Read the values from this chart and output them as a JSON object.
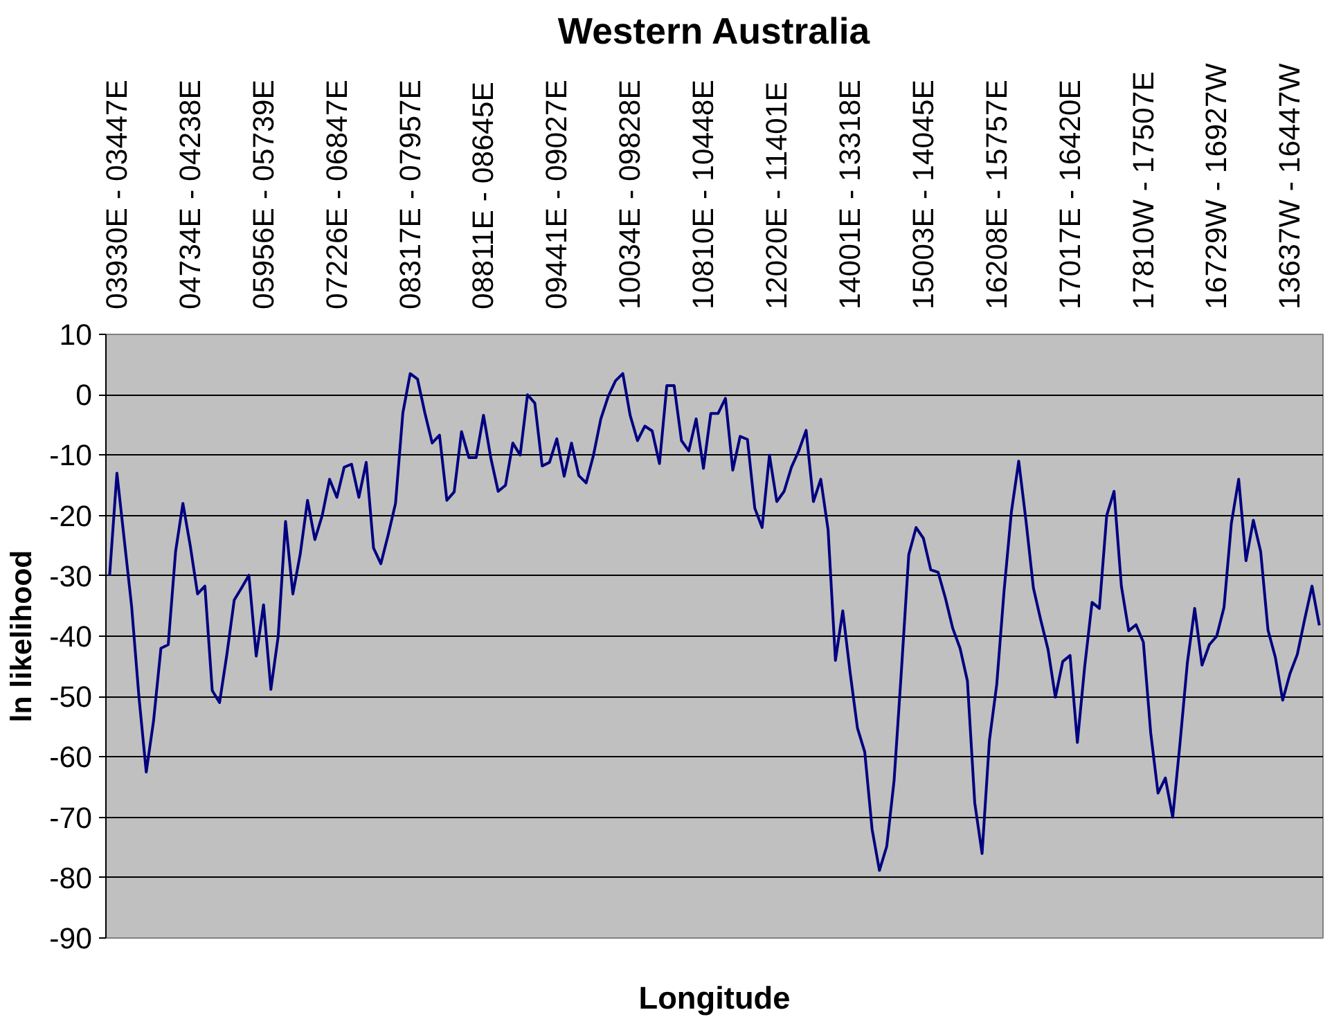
{
  "chart_data": {
    "type": "line",
    "title": "Western Australia",
    "xlabel": "Longitude",
    "ylabel": "ln likelihood",
    "categories": [
      null,
      "03930E - 03447E",
      null,
      null,
      null,
      null,
      null,
      null,
      null,
      null,
      null,
      "04734E - 04238E",
      null,
      null,
      null,
      null,
      null,
      null,
      null,
      null,
      null,
      "05956E - 05739E",
      null,
      null,
      null,
      null,
      null,
      null,
      null,
      null,
      null,
      "07226E - 06847E",
      null,
      null,
      null,
      null,
      null,
      null,
      null,
      null,
      null,
      "08317E - 07957E",
      null,
      null,
      null,
      null,
      null,
      null,
      null,
      null,
      null,
      "08811E - 08645E",
      null,
      null,
      null,
      null,
      null,
      null,
      null,
      null,
      null,
      "09441E - 09027E",
      null,
      null,
      null,
      null,
      null,
      null,
      null,
      null,
      null,
      "10034E - 09828E",
      null,
      null,
      null,
      null,
      null,
      null,
      null,
      null,
      null,
      "10810E - 10448E",
      null,
      null,
      null,
      null,
      null,
      null,
      null,
      null,
      null,
      "12020E - 11401E",
      null,
      null,
      null,
      null,
      null,
      null,
      null,
      null,
      null,
      "14001E - 13318E",
      null,
      null,
      null,
      null,
      null,
      null,
      null,
      null,
      null,
      "15003E - 14045E",
      null,
      null,
      null,
      null,
      null,
      null,
      null,
      null,
      null,
      "16208E - 15757E",
      null,
      null,
      null,
      null,
      null,
      null,
      null,
      null,
      null,
      "17017E - 16420E",
      null,
      null,
      null,
      null,
      null,
      null,
      null,
      null,
      null,
      "17810W - 17507E",
      null,
      null,
      null,
      null,
      null,
      null,
      null,
      null,
      null,
      "16729W - 16927W",
      null,
      null,
      null,
      null,
      null,
      null,
      null,
      null,
      null,
      "13637W - 16447W",
      null,
      null,
      null,
      null
    ],
    "series": [
      {
        "color": "#000080",
        "values": [
          -30,
          -13,
          -24,
          -35,
          -50,
          -62.5,
          -54,
          -42,
          -41.4,
          -26,
          -18,
          -25,
          -33,
          -31.7,
          -49,
          -51,
          -43,
          -34,
          -32,
          -29.9,
          -43.3,
          -34.8,
          -48.8,
          -40,
          -21,
          -33,
          -26.4,
          -17.5,
          -24,
          -20,
          -14,
          -17,
          -12,
          -11.5,
          -17,
          -11.2,
          -25.4,
          -28,
          -23.2,
          -18,
          -3,
          3.5,
          2.6,
          -3,
          -8,
          -6.7,
          -17.5,
          -16.1,
          -6.1,
          -10.4,
          -10.4,
          -3.4,
          -10.5,
          -16,
          -15,
          -8,
          -10,
          0,
          -1.4,
          -11.8,
          -11.2,
          -7.3,
          -13.5,
          -8,
          -13.4,
          -14.6,
          -10,
          -4,
          -0.3,
          2.3,
          3.5,
          -3.4,
          -7.6,
          -5.2,
          -6,
          -11.4,
          1.5,
          1.5,
          -7.6,
          -9.3,
          -4,
          -12.2,
          -3.1,
          -3.1,
          -0.6,
          -12.5,
          -6.9,
          -7.4,
          -18.8,
          -22,
          -10,
          -17.7,
          -16,
          -12,
          -9.3,
          -5.9,
          -17.7,
          -14,
          -22.4,
          -44,
          -35.8,
          -46,
          -55.2,
          -59.2,
          -72,
          -78.8,
          -74.8,
          -63.9,
          -45.7,
          -26.5,
          -22,
          -23.8,
          -29,
          -29.4,
          -33.7,
          -38.7,
          -42,
          -47.4,
          -67.6,
          -76,
          -57.3,
          -48,
          -32.5,
          -19.4,
          -11,
          -21,
          -32,
          -37.3,
          -42.2,
          -50.1,
          -44.2,
          -43.2,
          -57.6,
          -45,
          -34.4,
          -35.4,
          -20,
          -16,
          -31.7,
          -39.1,
          -38.1,
          -41,
          -56,
          -66,
          -63.5,
          -70,
          -57.7,
          -44.4,
          -35.4,
          -44.8,
          -41.4,
          -40,
          -35.2,
          -21.3,
          -14,
          -27.5,
          -20.8,
          -26,
          -39,
          -43.5,
          -50.6,
          -46.2,
          -43,
          -37.2,
          -31.7,
          -38.2
        ]
      }
    ],
    "ylim": [
      -90,
      10
    ],
    "yticks": [
      -90,
      -80,
      -70,
      -60,
      -50,
      -40,
      -30,
      -20,
      -10,
      0,
      10
    ],
    "grid": "y",
    "marker": "none",
    "line_style": "solid"
  }
}
